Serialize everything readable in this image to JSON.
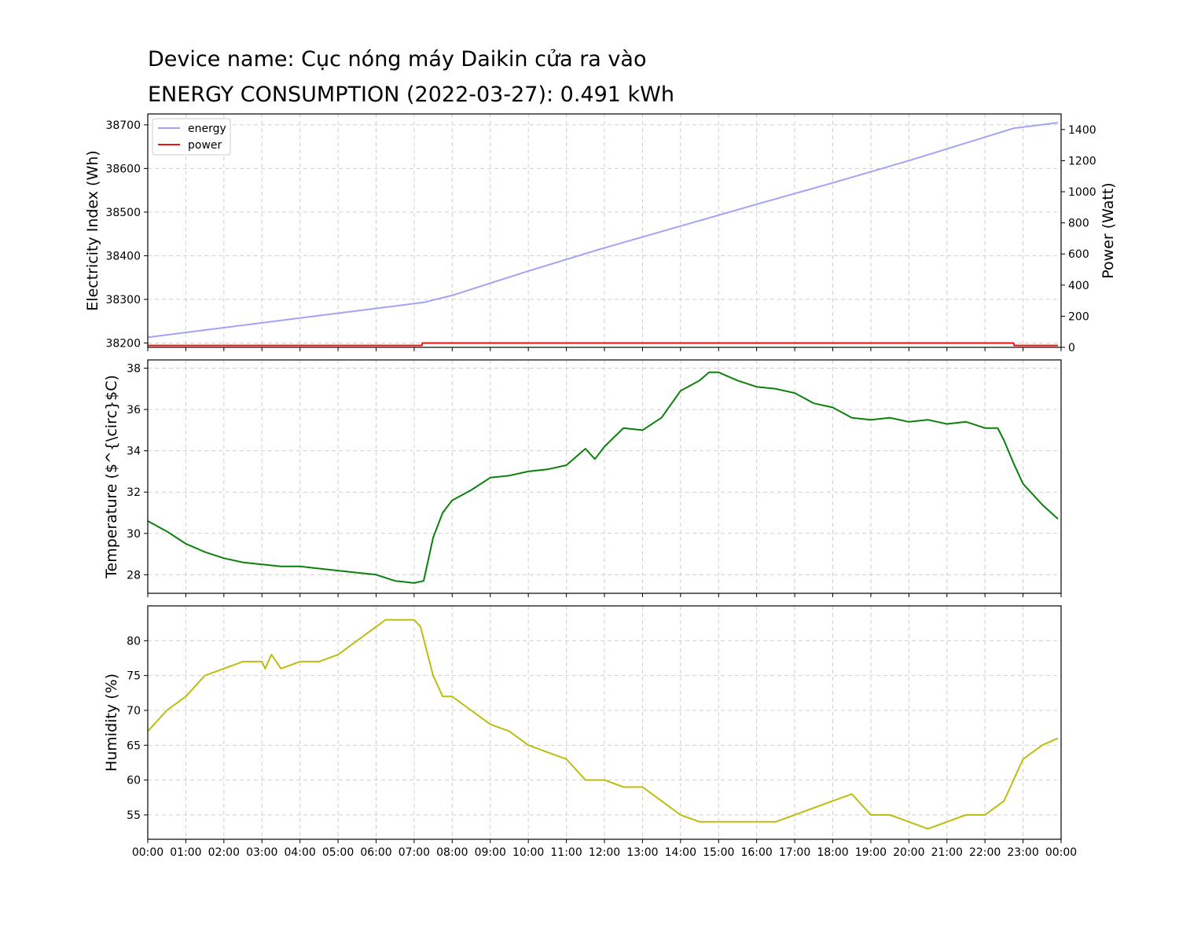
{
  "title_line1": "Device name: Cục nóng máy Daikin cửa ra vào",
  "title_line2": "ENERGY CONSUMPTION (2022-03-27): 0.491 kWh",
  "colors": {
    "energy": "#a3a3f5",
    "power": "#ee1111",
    "temperature": "#0b800b",
    "humidity": "#bdbd0f",
    "grid": "#cfcfcf"
  },
  "chart_data": [
    {
      "type": "line",
      "ylabel": "Electricity Index (Wh)",
      "y2label": "Power (Watt)",
      "ylim": [
        38190,
        38725
      ],
      "y2lim": [
        0,
        1500
      ],
      "yticks": [
        "38200",
        "38300",
        "38400",
        "38500",
        "38600",
        "38700"
      ],
      "y2ticks": [
        "0",
        "200",
        "400",
        "600",
        "800",
        "1000",
        "1200",
        "1400"
      ],
      "grid": true,
      "legend": "top-left",
      "series": [
        {
          "name": "energy",
          "axis": "left",
          "x": [
            "00:00",
            "07:15",
            "08:00",
            "10:00",
            "12:00",
            "14:00",
            "16:00",
            "18:00",
            "20:00",
            "22:45",
            "23:55"
          ],
          "values": [
            38213,
            38293,
            38309,
            38365,
            38418,
            38468,
            38518,
            38567,
            38618,
            38692,
            38705
          ]
        },
        {
          "name": "power",
          "axis": "right",
          "x": [
            "00:00",
            "07:12",
            "07:13",
            "22:45",
            "22:46",
            "23:55"
          ],
          "values": [
            12,
            12,
            28,
            28,
            12,
            12
          ]
        }
      ]
    },
    {
      "type": "line",
      "ylabel": "Temperature ($^{\\circ}$C)",
      "ylim": [
        27.1,
        38.4
      ],
      "yticks": [
        "28",
        "30",
        "32",
        "34",
        "36",
        "38"
      ],
      "grid": true,
      "series": [
        {
          "x": [
            "00:00",
            "00:30",
            "01:00",
            "01:30",
            "02:00",
            "02:30",
            "03:00",
            "03:30",
            "04:00",
            "04:30",
            "05:00",
            "05:30",
            "06:00",
            "06:30",
            "07:00",
            "07:15",
            "07:30",
            "07:45",
            "08:00",
            "08:30",
            "09:00",
            "09:30",
            "10:00",
            "10:30",
            "11:00",
            "11:30",
            "11:45",
            "12:00",
            "12:30",
            "13:00",
            "13:30",
            "14:00",
            "14:30",
            "14:45",
            "15:00",
            "15:30",
            "16:00",
            "16:30",
            "17:00",
            "17:30",
            "18:00",
            "18:30",
            "19:00",
            "19:30",
            "20:00",
            "20:30",
            "21:00",
            "21:30",
            "22:00",
            "22:20",
            "22:30",
            "22:45",
            "23:00",
            "23:30",
            "23:55"
          ],
          "values": [
            30.6,
            30.1,
            29.5,
            29.1,
            28.8,
            28.6,
            28.5,
            28.4,
            28.4,
            28.3,
            28.2,
            28.1,
            28.0,
            27.7,
            27.6,
            27.7,
            29.8,
            31.0,
            31.6,
            32.1,
            32.7,
            32.8,
            33.0,
            33.1,
            33.3,
            34.1,
            33.6,
            34.2,
            35.1,
            35.0,
            35.6,
            36.9,
            37.4,
            37.8,
            37.8,
            37.4,
            37.1,
            37.0,
            36.8,
            36.3,
            36.1,
            35.6,
            35.5,
            35.6,
            35.4,
            35.5,
            35.3,
            35.4,
            35.1,
            35.1,
            34.5,
            33.4,
            32.4,
            31.4,
            30.7
          ]
        }
      ]
    },
    {
      "type": "line",
      "ylabel": "Humidity (%)",
      "ylim": [
        51.5,
        85
      ],
      "yticks": [
        "55",
        "60",
        "65",
        "70",
        "75",
        "80"
      ],
      "xticks": [
        "00:00",
        "01:00",
        "02:00",
        "03:00",
        "04:00",
        "05:00",
        "06:00",
        "07:00",
        "08:00",
        "09:00",
        "10:00",
        "11:00",
        "12:00",
        "13:00",
        "14:00",
        "15:00",
        "16:00",
        "17:00",
        "18:00",
        "19:00",
        "20:00",
        "21:00",
        "22:00",
        "23:00",
        "00:00"
      ],
      "grid": true,
      "series": [
        {
          "x": [
            "00:00",
            "00:30",
            "01:00",
            "01:30",
            "02:00",
            "02:30",
            "03:00",
            "03:05",
            "03:15",
            "03:30",
            "04:00",
            "04:30",
            "05:00",
            "05:30",
            "06:00",
            "06:15",
            "06:30",
            "07:00",
            "07:10",
            "07:30",
            "07:45",
            "08:00",
            "08:30",
            "09:00",
            "09:30",
            "10:00",
            "10:30",
            "11:00",
            "11:30",
            "12:00",
            "12:30",
            "13:00",
            "13:30",
            "14:00",
            "14:30",
            "15:00",
            "15:30",
            "16:00",
            "16:30",
            "17:00",
            "17:30",
            "18:00",
            "18:30",
            "19:00",
            "19:30",
            "20:00",
            "20:30",
            "21:00",
            "21:30",
            "22:00",
            "22:30",
            "23:00",
            "23:30",
            "23:55"
          ],
          "values": [
            67,
            70,
            72,
            75,
            76,
            77,
            77,
            76,
            78,
            76,
            77,
            77,
            78,
            80,
            82,
            83,
            83,
            83,
            82,
            75,
            72,
            72,
            70,
            68,
            67,
            65,
            64,
            63,
            60,
            60,
            59,
            59,
            57,
            55,
            54,
            54,
            54,
            54,
            54,
            55,
            56,
            57,
            58,
            55,
            55,
            54,
            53,
            54,
            55,
            55,
            57,
            63,
            65,
            66
          ]
        }
      ]
    }
  ]
}
